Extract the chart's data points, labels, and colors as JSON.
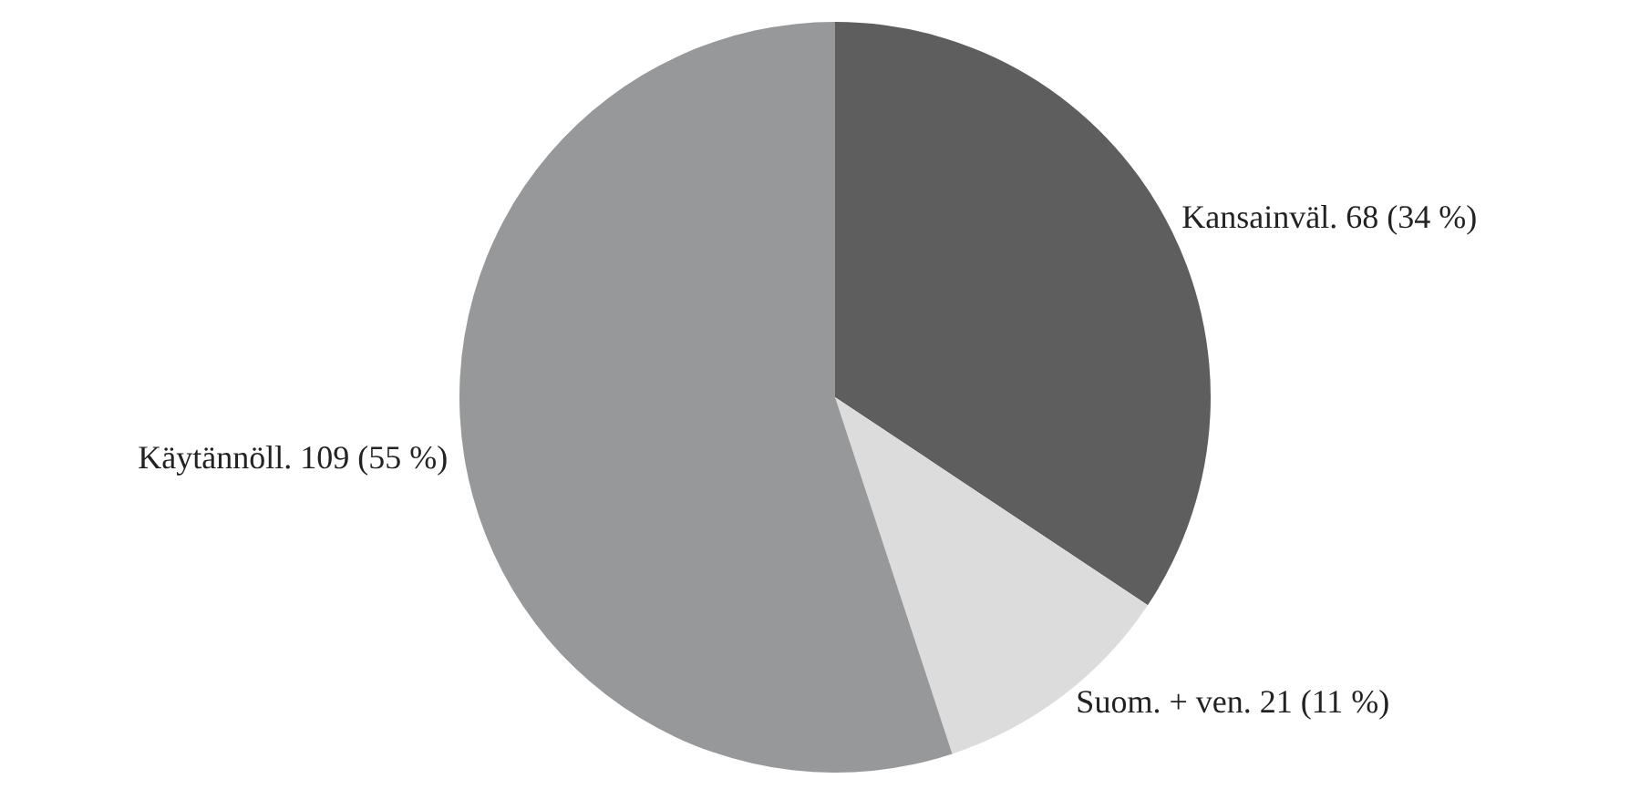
{
  "chart_data": {
    "type": "pie",
    "categories": [
      "Kansainväl.",
      "Suom. + ven.",
      "Käytännöll."
    ],
    "values": [
      68,
      21,
      109
    ],
    "value_labels": [
      "68 (34 %)",
      "21 (11 %)",
      "109 (55 %)"
    ],
    "colors": [
      "#5e5e5e",
      "#dcdcdc",
      "#97989a"
    ],
    "legend": false
  }
}
